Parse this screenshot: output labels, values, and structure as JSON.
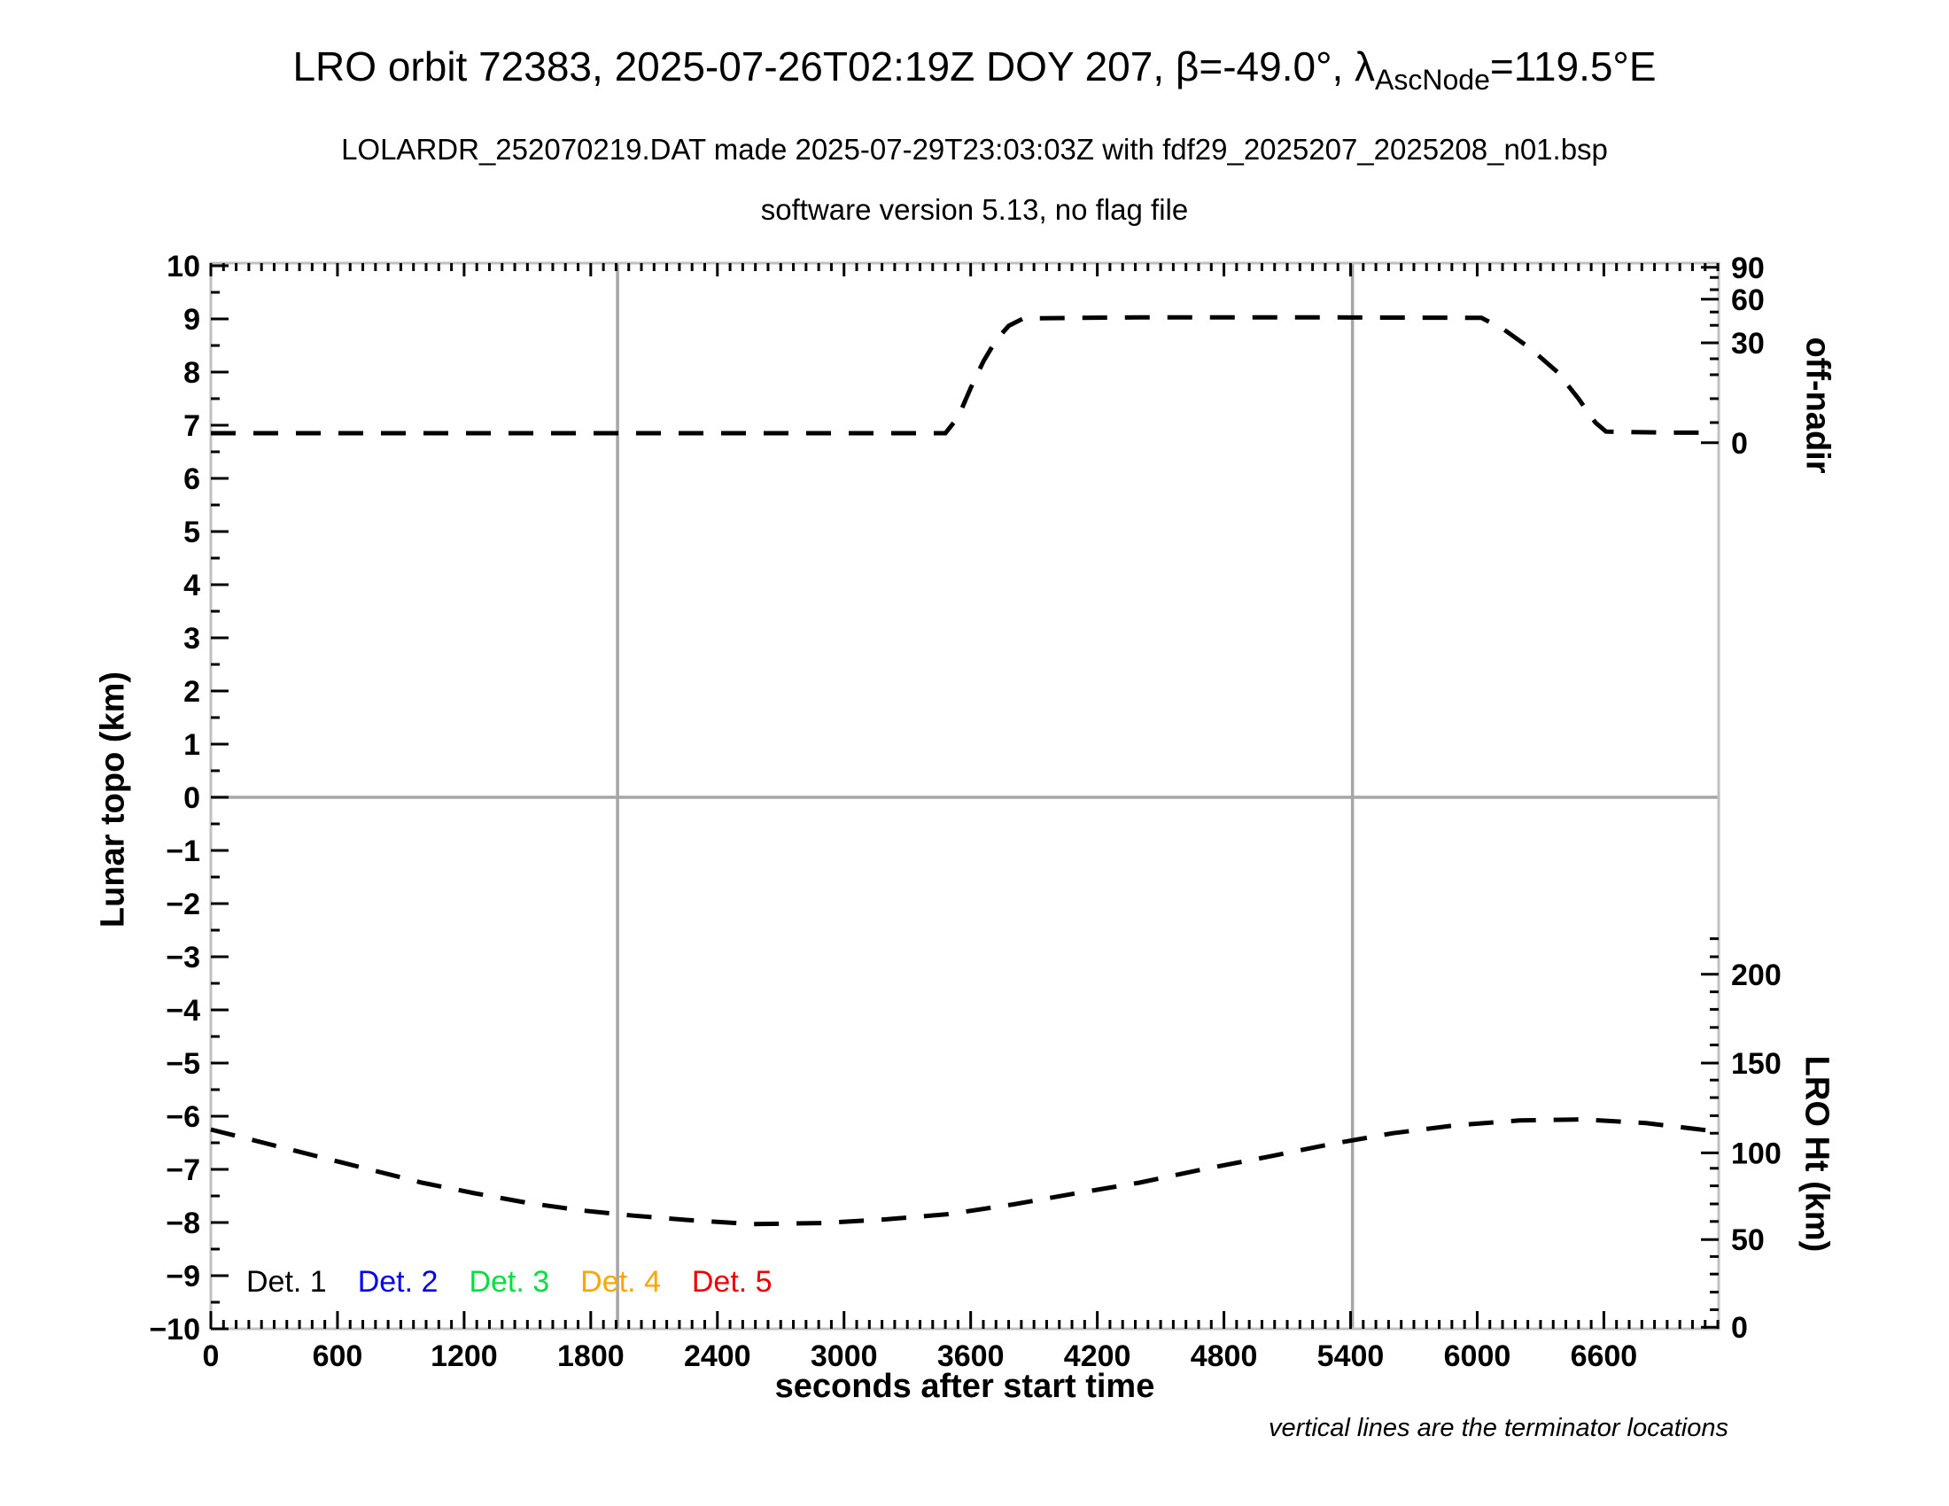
{
  "header": {
    "title": {
      "prefix": "LRO orbit 72383, 2025-07-26T02:19Z DOY 207, β=-49.0°, λ",
      "subscript": "AscNode",
      "suffix": "=119.5°E"
    },
    "subtitle1": "LOLARDR_252070219.DAT made 2025-07-29T23:03:03Z with fdf29_2025207_2025208_n01.bsp",
    "subtitle2": "software version 5.13, no flag file"
  },
  "footnote": "vertical lines are the terminator locations",
  "legend": {
    "entries": [
      {
        "label": "Det. 1",
        "color": "#000000"
      },
      {
        "label": "Det. 2",
        "color": "#0000ee"
      },
      {
        "label": "Det. 3",
        "color": "#00e040"
      },
      {
        "label": "Det. 4",
        "color": "#ffa500"
      },
      {
        "label": "Det. 5",
        "color": "#ee0000"
      }
    ]
  },
  "chart_data": {
    "type": "line",
    "xlabel": "seconds after start time",
    "ylabel_left": "Lunar topo (km)",
    "ylabel_right_top": "off-nadir",
    "ylabel_right_bottom": "LRO Ht (km)",
    "x_range_s": [
      0,
      7144
    ],
    "y_range_left": [
      -10,
      10
    ],
    "x_major_tick_step_s": 600,
    "x_major_tick_labels": [
      "0",
      "600",
      "1200",
      "1800",
      "2400",
      "3000",
      "3600",
      "4200",
      "4800",
      "5400",
      "6000",
      "6600"
    ],
    "x_minor_tick_step_s": 60,
    "y_major_tick_step": 1,
    "y_minor_tick_step": 0.5,
    "grid": {
      "zero_line": true,
      "terminator_lines_s": [
        1927,
        5409
      ]
    },
    "colors": {
      "frame": "#c0c0c0",
      "gridline": "#a6a6a6",
      "tick": "#000000",
      "curve": "#000000"
    },
    "off_nadir_axis": {
      "major": [
        {
          "label": "90",
          "v": 9.97
        },
        {
          "label": "60",
          "v": 9.37
        },
        {
          "label": "30",
          "v": 8.55
        },
        {
          "label": "0",
          "v": 6.67
        }
      ],
      "minor_v": [
        9.78,
        9.55,
        9.13,
        8.88,
        8.25,
        7.95,
        7.5,
        7.05
      ]
    },
    "lro_ht_axis": {
      "major": [
        {
          "label": "200",
          "v": -3.33
        },
        {
          "label": "150",
          "v": -5.0
        },
        {
          "label": "100",
          "v": -6.69
        },
        {
          "label": "50",
          "v": -8.32
        },
        {
          "label": "0",
          "v": -9.97
        }
      ],
      "minor_v": [
        -9.64,
        -9.31,
        -8.97,
        -8.64,
        -7.98,
        -7.65,
        -7.31,
        -6.98,
        -6.32,
        -5.99,
        -5.65,
        -5.32,
        -4.66,
        -4.33,
        -3.99,
        -3.66,
        -3.0,
        -2.66
      ]
    },
    "series": [
      {
        "name": "off-nadir angle (dashed)",
        "style": "dashed",
        "points": [
          [
            0,
            6.85
          ],
          [
            3480,
            6.85
          ],
          [
            3540,
            7.15
          ],
          [
            3600,
            7.7
          ],
          [
            3660,
            8.2
          ],
          [
            3720,
            8.6
          ],
          [
            3780,
            8.87
          ],
          [
            3850,
            9.01
          ],
          [
            4400,
            9.03
          ],
          [
            5200,
            9.03
          ],
          [
            6020,
            9.02
          ],
          [
            6120,
            8.82
          ],
          [
            6250,
            8.45
          ],
          [
            6380,
            8.0
          ],
          [
            6480,
            7.5
          ],
          [
            6560,
            7.05
          ],
          [
            6610,
            6.88
          ],
          [
            6900,
            6.86
          ],
          [
            7120,
            6.86
          ]
        ]
      },
      {
        "name": "LRO height (dashed)",
        "style": "dashed",
        "points": [
          [
            0,
            -6.25
          ],
          [
            250,
            -6.5
          ],
          [
            500,
            -6.75
          ],
          [
            750,
            -7.0
          ],
          [
            1000,
            -7.25
          ],
          [
            1250,
            -7.45
          ],
          [
            1500,
            -7.63
          ],
          [
            1750,
            -7.77
          ],
          [
            2000,
            -7.87
          ],
          [
            2250,
            -7.95
          ],
          [
            2570,
            -8.03
          ],
          [
            2900,
            -8.01
          ],
          [
            3200,
            -7.94
          ],
          [
            3500,
            -7.84
          ],
          [
            3800,
            -7.66
          ],
          [
            4100,
            -7.45
          ],
          [
            4400,
            -7.25
          ],
          [
            4700,
            -7.0
          ],
          [
            5000,
            -6.77
          ],
          [
            5300,
            -6.53
          ],
          [
            5600,
            -6.32
          ],
          [
            5900,
            -6.17
          ],
          [
            6200,
            -6.08
          ],
          [
            6500,
            -6.06
          ],
          [
            6800,
            -6.13
          ],
          [
            7100,
            -6.27
          ]
        ]
      }
    ]
  }
}
